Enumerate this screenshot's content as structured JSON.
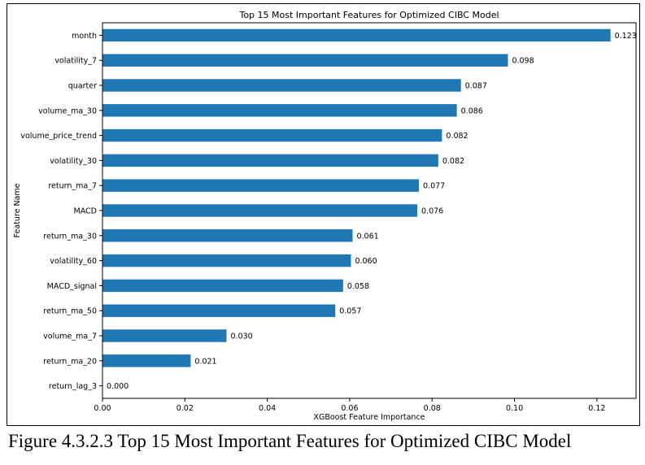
{
  "figure": {
    "caption": "Figure 4.3.2.3 Top 15 Most Important Features for Optimized CIBC Model"
  },
  "chart_data": {
    "type": "bar",
    "orientation": "horizontal",
    "title": "Top 15 Most Important Features for Optimized CIBC Model",
    "xlabel": "XGBoost Feature Importance",
    "ylabel": "Feature Name",
    "categories": [
      "month",
      "volatility_7",
      "quarter",
      "volume_ma_30",
      "volume_price_trend",
      "volatility_30",
      "return_ma_7",
      "MACD",
      "return_ma_30",
      "volatility_60",
      "MACD_signal",
      "return_ma_50",
      "volume_ma_7",
      "return_ma_20",
      "return_lag_3"
    ],
    "values": [
      0.1233,
      0.0984,
      0.087,
      0.086,
      0.0824,
      0.0815,
      0.0768,
      0.0764,
      0.0607,
      0.0603,
      0.0584,
      0.0565,
      0.0301,
      0.0214,
      0.0
    ],
    "value_labels": [
      "0.123",
      "0.098",
      "0.087",
      "0.086",
      "0.082",
      "0.082",
      "0.077",
      "0.076",
      "0.061",
      "0.060",
      "0.058",
      "0.057",
      "0.030",
      "0.021",
      "0.000"
    ],
    "xlim": [
      0,
      0.1295
    ],
    "xticks": [
      0.0,
      0.02,
      0.04,
      0.06,
      0.08,
      0.1,
      0.12
    ],
    "xtick_labels": [
      "0.00",
      "0.02",
      "0.04",
      "0.06",
      "0.08",
      "0.10",
      "0.12"
    ],
    "bar_color": "#1f77b4",
    "grid": false,
    "legend": "none"
  }
}
